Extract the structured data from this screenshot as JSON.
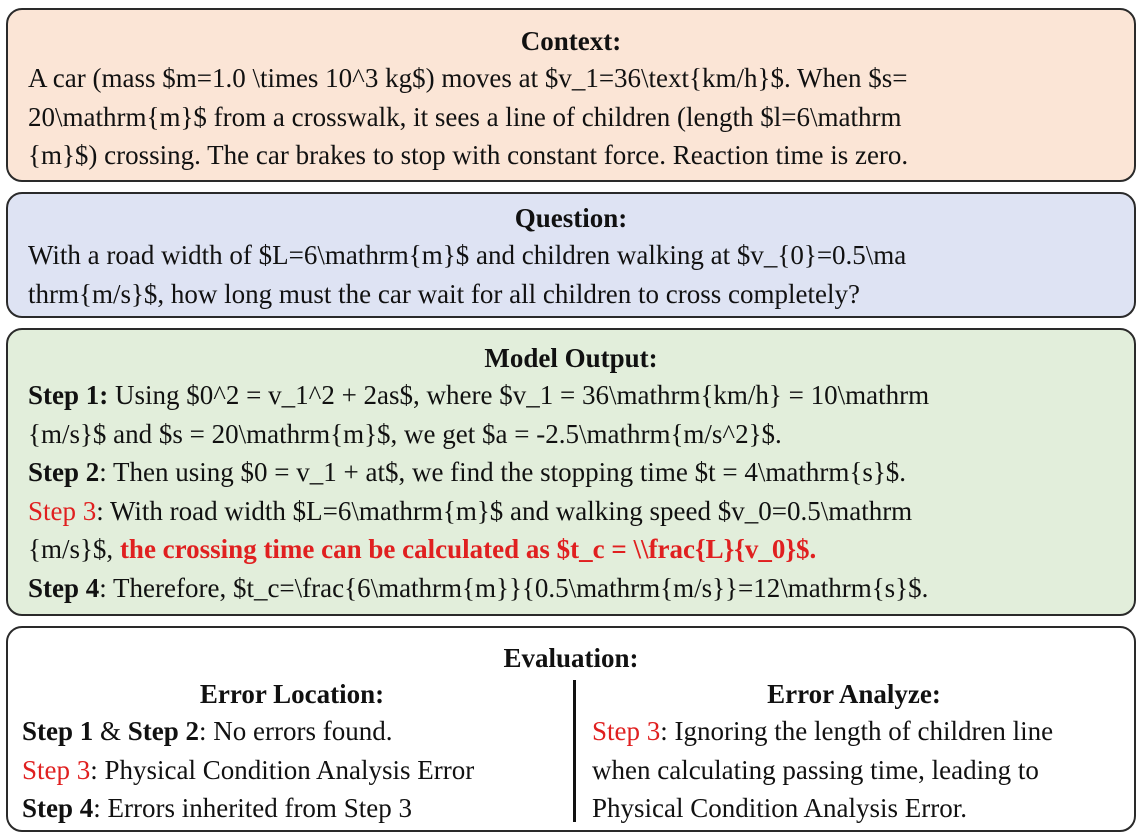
{
  "context": {
    "title": "Context:",
    "lines": [
      "A car (mass $m=1.0 \\times 10^3 kg$) moves at $v_1=36\\text{km/h}$. When $s=",
      "20\\mathrm{m}$ from a crosswalk, it sees  a line of children (length $l=6\\mathrm",
      "{m}$) crossing. The car brakes to stop with constant force. Reaction time is zero."
    ]
  },
  "question": {
    "title": "Question:",
    "lines": [
      "With a road width of $L=6\\mathrm{m}$ and children walking at $v_{0}=0.5\\ma",
      "thrm{m/s}$, how long must the car wait for all children to cross completely?"
    ]
  },
  "model_output": {
    "title": "Model Output:",
    "step1_label": "Step 1:",
    "step1_line1": " Using $0^2 = v_1^2 + 2as$, where $v_1 = 36\\mathrm{km/h} = 10\\mathrm",
    "step1_line2": "{m/s}$ and $s = 20\\mathrm{m}$, we get $a = -2.5\\mathrm{m/s^2}$.",
    "step2_label": "Step 2",
    "step2_text": ": Then using $0 = v_1 + at$, we find the stopping time $t = 4\\mathrm{s}$.",
    "step3_label": "Step 3",
    "step3_line1": ": With road width $L=6\\mathrm{m}$ and walking speed $v_0=0.5\\mathrm",
    "step3_line2_plain": "{m/s}$, ",
    "step3_line2_error": "the crossing time can be calculated as $t_c = \\\\frac{L}{v_0}$.",
    "step4_label": "Step 4",
    "step4_text": ": Therefore, $t_c=\\frac{6\\mathrm{m}}{0.5\\mathrm{m/s}}=12\\mathrm{s}$."
  },
  "evaluation": {
    "title": "Evaluation:",
    "location": {
      "heading": "Error Location:",
      "row1_label_a": "Step 1",
      "row1_amp": " & ",
      "row1_label_b": "Step 2",
      "row1_text": ": No errors found.",
      "row2_label": "Step 3",
      "row2_text": ": Physical Condition Analysis Error",
      "row3_label": "Step 4",
      "row3_text": ": Errors inherited from Step 3"
    },
    "analyze": {
      "heading": "Error Analyze:",
      "label": "Step 3",
      "line1": ": Ignoring the length of children line",
      "line2": "when calculating passing time, leading to",
      "line3": "Physical Condition Analysis Error."
    }
  },
  "colors": {
    "context_bg": "#fbe5d6",
    "question_bg": "#dee3f3",
    "output_bg": "#e2eedb",
    "error_red": "#e02020"
  }
}
